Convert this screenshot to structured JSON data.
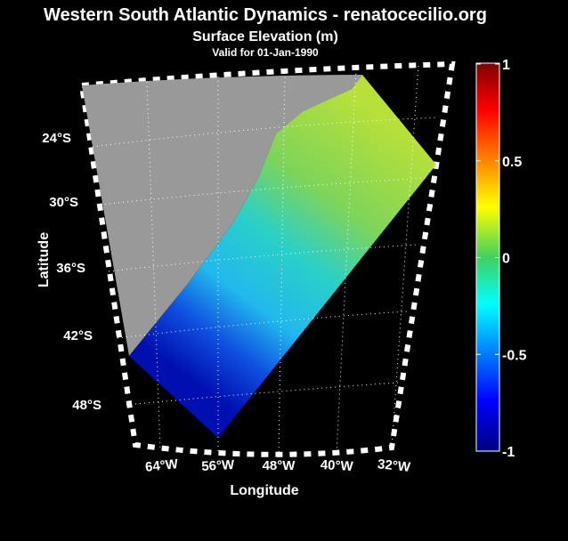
{
  "header": {
    "title": "Western South Atlantic Dynamics - renatocecilio.org",
    "subtitle": "Surface Elevation (m)",
    "valid": "Valid for 01-Jan-1990"
  },
  "map": {
    "x_label": "Longitude",
    "y_label": "Latitude",
    "lat_labels": [
      "24°S",
      "30°S",
      "36°S",
      "42°S",
      "48°S"
    ],
    "lon_labels": [
      "64°W",
      "56°W",
      "48°W",
      "40°W",
      "32°W"
    ]
  },
  "colorbar": {
    "lim": [
      -1,
      1
    ],
    "ticks": [
      1,
      0.5,
      0,
      -0.5,
      -1
    ]
  }
}
